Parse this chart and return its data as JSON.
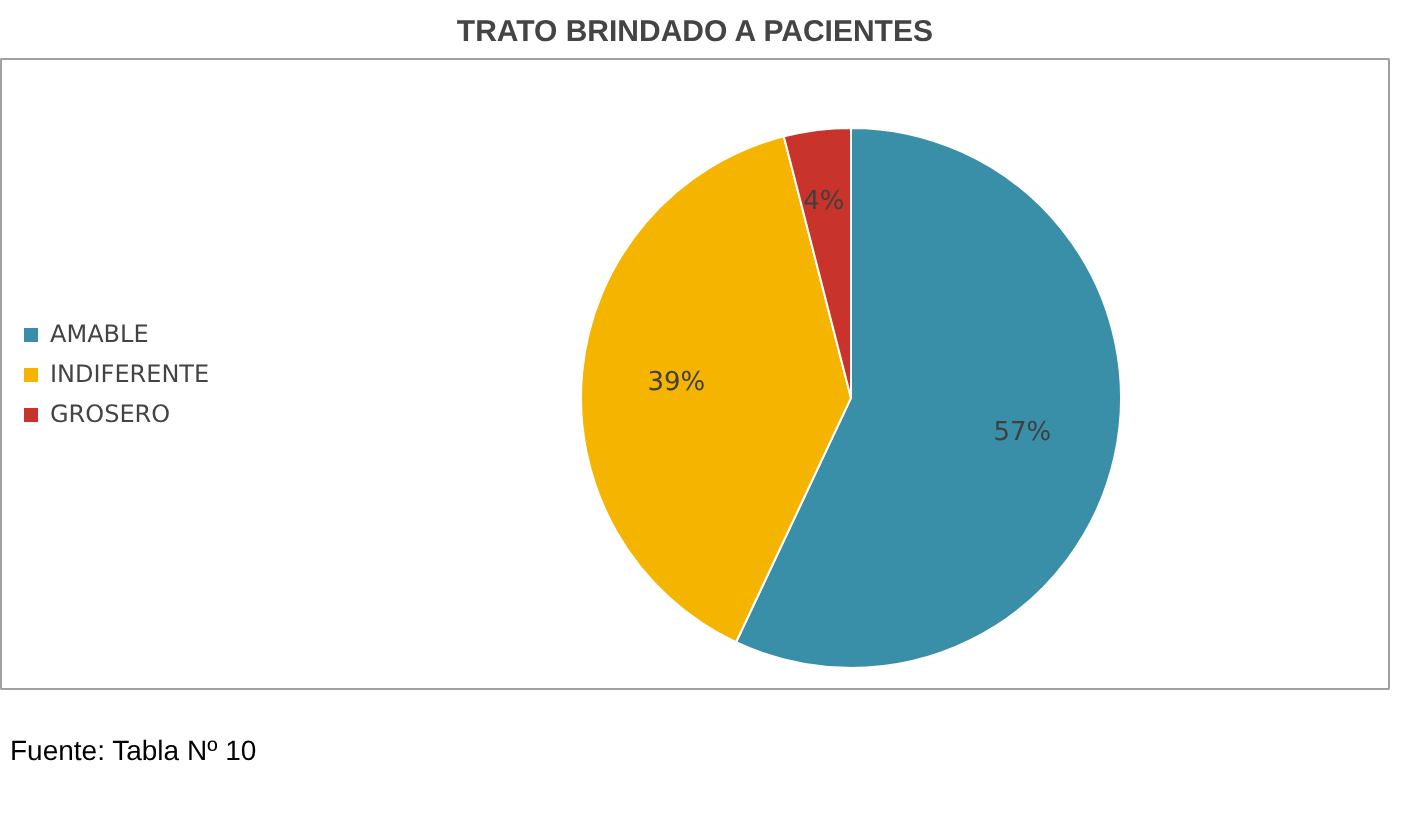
{
  "chart_data": {
    "type": "pie",
    "title": "TRATO BRINDADO A PACIENTES",
    "categories": [
      "AMABLE",
      "INDIFERENTE",
      "GROSERO"
    ],
    "values": [
      57,
      39,
      4
    ],
    "colors": [
      "#3a8fa8",
      "#f5b400",
      "#c8342c"
    ],
    "value_labels": [
      "57%",
      "39%",
      "4%"
    ],
    "legend": "left",
    "annotations": [
      "Fuente: Tabla Nº 10"
    ]
  }
}
